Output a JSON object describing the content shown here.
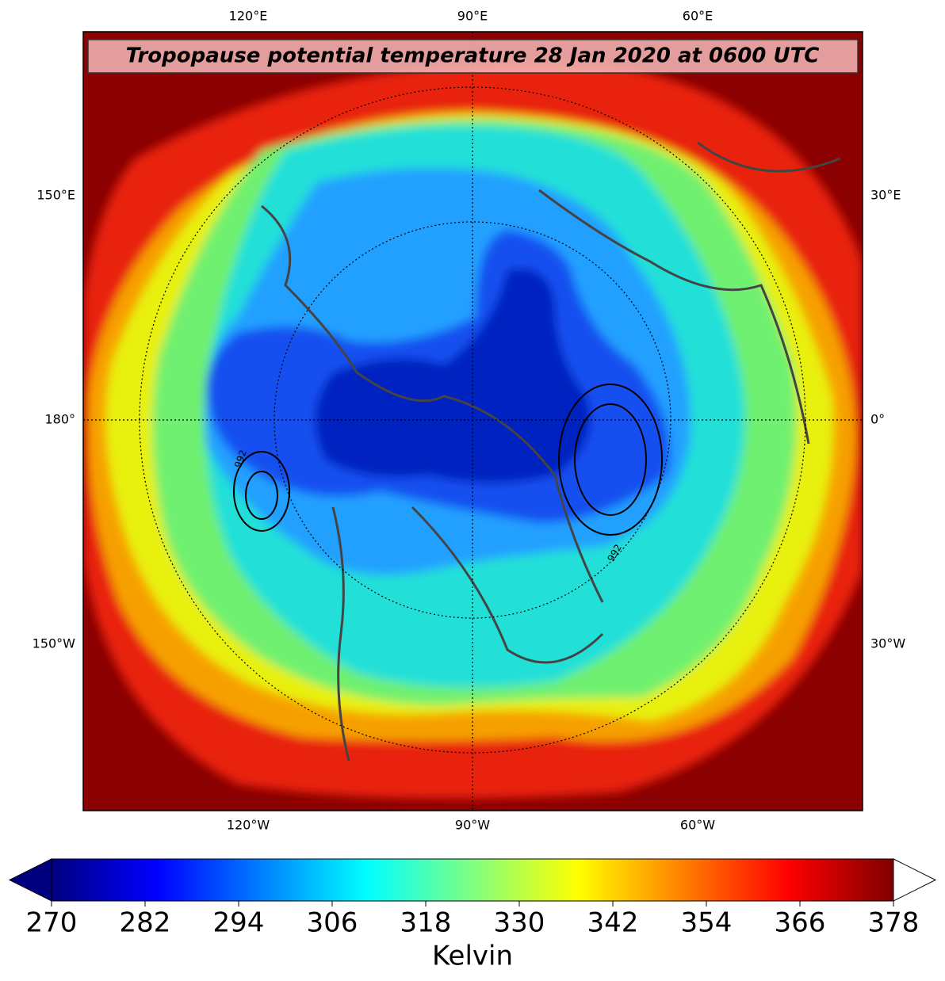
{
  "title": "Tropopause potential temperature 28 Jan 2020 at 0600 UTC",
  "map": {
    "labels": {
      "top": [
        "120°E",
        "90°E",
        "60°E"
      ],
      "bottom": [
        "120°W",
        "90°W",
        "60°W"
      ],
      "left": [
        "150°E",
        "180°",
        "150°W"
      ],
      "right": [
        "30°E",
        "0°",
        "30°W"
      ]
    },
    "contour_labels": [
      "992",
      "992"
    ]
  },
  "colorbar": {
    "label": "Kelvin",
    "lim": [
      270,
      378
    ],
    "ticks": [
      270,
      282,
      294,
      306,
      318,
      330,
      342,
      354,
      366,
      378
    ],
    "colormap": "jet",
    "extend": "both"
  }
}
